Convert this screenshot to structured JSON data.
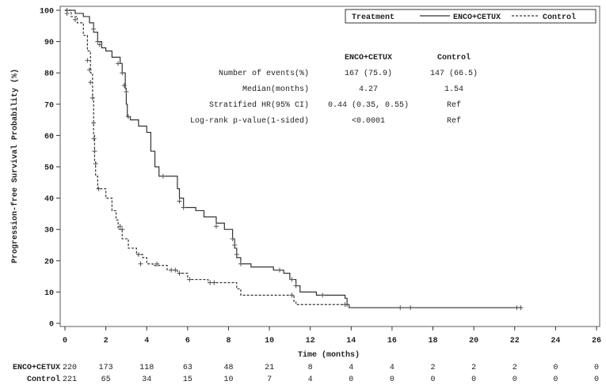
{
  "chart_data": {
    "type": "line",
    "title": "",
    "xlabel": "Time (months)",
    "ylabel": "Progression-free Survival Probability (%)",
    "xlim": [
      0,
      26
    ],
    "ylim": [
      0,
      100
    ],
    "xticks": [
      0,
      2,
      4,
      6,
      8,
      10,
      12,
      14,
      16,
      18,
      20,
      22,
      24,
      26
    ],
    "yticks": [
      0,
      10,
      20,
      30,
      40,
      50,
      60,
      70,
      80,
      90,
      100
    ],
    "grid": false,
    "legend": {
      "title": "Treatment",
      "placement": "top-right",
      "entries": [
        "ENCO+CETUX",
        "Control"
      ]
    },
    "series": [
      {
        "name": "ENCO+CETUX",
        "style": "solid",
        "step": [
          [
            0,
            100
          ],
          [
            0.5,
            99
          ],
          [
            0.9,
            98
          ],
          [
            1.2,
            96
          ],
          [
            1.4,
            93
          ],
          [
            1.6,
            90
          ],
          [
            1.8,
            88
          ],
          [
            2.0,
            87
          ],
          [
            2.3,
            85
          ],
          [
            2.7,
            83
          ],
          [
            2.8,
            80
          ],
          [
            2.95,
            75
          ],
          [
            3.0,
            70
          ],
          [
            3.05,
            66
          ],
          [
            3.2,
            65
          ],
          [
            3.6,
            63
          ],
          [
            4.0,
            61
          ],
          [
            4.2,
            55
          ],
          [
            4.4,
            50
          ],
          [
            4.6,
            47
          ],
          [
            5.2,
            47
          ],
          [
            5.5,
            43
          ],
          [
            5.6,
            40
          ],
          [
            5.8,
            37
          ],
          [
            6.4,
            36
          ],
          [
            6.8,
            34
          ],
          [
            7.4,
            32
          ],
          [
            7.8,
            30
          ],
          [
            8.2,
            27
          ],
          [
            8.3,
            24
          ],
          [
            8.4,
            21
          ],
          [
            8.6,
            19
          ],
          [
            9.1,
            18
          ],
          [
            10.2,
            17
          ],
          [
            10.7,
            16
          ],
          [
            11.0,
            14
          ],
          [
            11.3,
            12
          ],
          [
            11.5,
            10
          ],
          [
            12.3,
            9
          ],
          [
            13.7,
            8
          ],
          [
            13.8,
            6
          ],
          [
            13.9,
            5
          ],
          [
            22.3,
            5
          ]
        ],
        "censored": [
          [
            0.1,
            100
          ],
          [
            1.4,
            94
          ],
          [
            1.6,
            90
          ],
          [
            1.7,
            89
          ],
          [
            2.6,
            83
          ],
          [
            2.8,
            80
          ],
          [
            2.9,
            76
          ],
          [
            3.0,
            74
          ],
          [
            3.1,
            66
          ],
          [
            4.8,
            47
          ],
          [
            5.6,
            39
          ],
          [
            5.8,
            37
          ],
          [
            7.4,
            31
          ],
          [
            8.2,
            27
          ],
          [
            8.3,
            25
          ],
          [
            8.4,
            22
          ],
          [
            8.6,
            19
          ],
          [
            10.5,
            17
          ],
          [
            11.1,
            14
          ],
          [
            11.3,
            12
          ],
          [
            12.6,
            9
          ],
          [
            13.8,
            6
          ],
          [
            16.4,
            5
          ],
          [
            16.9,
            5
          ],
          [
            22.1,
            5
          ],
          [
            22.3,
            5
          ]
        ]
      },
      {
        "name": "Control",
        "style": "dashed",
        "step": [
          [
            0,
            100
          ],
          [
            0.3,
            98
          ],
          [
            0.6,
            96
          ],
          [
            0.9,
            92
          ],
          [
            1.1,
            87
          ],
          [
            1.25,
            80
          ],
          [
            1.35,
            72
          ],
          [
            1.4,
            60
          ],
          [
            1.45,
            52
          ],
          [
            1.5,
            47
          ],
          [
            1.6,
            43
          ],
          [
            2.0,
            40
          ],
          [
            2.3,
            36
          ],
          [
            2.5,
            33
          ],
          [
            2.6,
            30
          ],
          [
            2.8,
            27
          ],
          [
            3.1,
            24
          ],
          [
            3.5,
            22
          ],
          [
            3.8,
            21
          ],
          [
            4.0,
            19
          ],
          [
            4.3,
            18.5
          ],
          [
            4.6,
            18.5
          ],
          [
            5.0,
            17
          ],
          [
            5.5,
            16
          ],
          [
            6.0,
            14
          ],
          [
            7.0,
            13
          ],
          [
            8.2,
            13
          ],
          [
            8.4,
            11
          ],
          [
            8.6,
            9
          ],
          [
            10.9,
            9
          ],
          [
            11.2,
            7
          ],
          [
            11.3,
            6
          ],
          [
            13.8,
            6
          ]
        ],
        "censored": [
          [
            0.1,
            99
          ],
          [
            0.5,
            97
          ],
          [
            1.1,
            84
          ],
          [
            1.2,
            81
          ],
          [
            1.25,
            77
          ],
          [
            1.35,
            72
          ],
          [
            1.4,
            64
          ],
          [
            1.42,
            59
          ],
          [
            1.45,
            55
          ],
          [
            1.5,
            51
          ],
          [
            1.65,
            43
          ],
          [
            2.7,
            31
          ],
          [
            2.8,
            30
          ],
          [
            3.6,
            22
          ],
          [
            3.7,
            19
          ],
          [
            4.5,
            19
          ],
          [
            5.2,
            17
          ],
          [
            5.4,
            17
          ],
          [
            5.6,
            16
          ],
          [
            6.1,
            14
          ],
          [
            7.1,
            13
          ],
          [
            7.3,
            13
          ],
          [
            11.1,
            9
          ],
          [
            13.7,
            6
          ]
        ]
      }
    ],
    "stats_table": {
      "columns": [
        "ENCO+CETUX",
        "Control"
      ],
      "rows": [
        {
          "label": "Number of events(%)",
          "values": [
            "167 (75.9)",
            "147 (66.5)"
          ]
        },
        {
          "label": "Median(months)",
          "values": [
            "4.27",
            "1.54"
          ]
        },
        {
          "label": "Stratified HR(95% CI)",
          "values": [
            "0.44 (0.35, 0.55)",
            "Ref"
          ]
        },
        {
          "label": "Log-rank p-value(1-sided)",
          "values": [
            "<0.0001",
            "Ref"
          ]
        }
      ]
    },
    "at_risk": [
      {
        "name": "ENCO+CETUX",
        "values": [
          "220",
          "173",
          "118",
          "63",
          "48",
          "21",
          "8",
          "4",
          "4",
          "2",
          "2",
          "2",
          "0",
          "0"
        ]
      },
      {
        "name": "Control",
        "values": [
          "221",
          "65",
          "34",
          "15",
          "10",
          "7",
          "4",
          "0",
          "0",
          "0",
          "0",
          "0",
          "0",
          "0"
        ]
      }
    ]
  }
}
